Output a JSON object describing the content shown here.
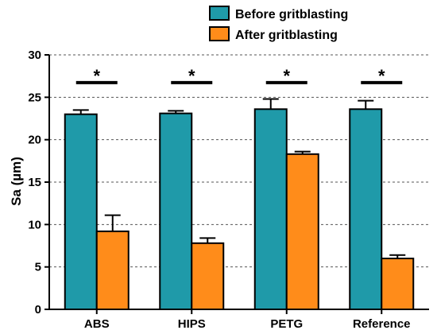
{
  "chart_data": {
    "type": "bar",
    "title": "",
    "xlabel": "",
    "ylabel": "Sa (µm)",
    "ylim": [
      0,
      30
    ],
    "yticks": [
      0,
      5,
      10,
      15,
      20,
      25,
      30
    ],
    "grid": "horizontal-dashed",
    "legend_position": "top-right",
    "categories": [
      "ABS",
      "HIPS",
      "PETG",
      "Reference"
    ],
    "series": [
      {
        "name": "Before gritblasting",
        "color": "#1f9aa9",
        "values": [
          23.0,
          23.1,
          23.6,
          23.6
        ],
        "errors": [
          0.5,
          0.3,
          1.2,
          1.0
        ]
      },
      {
        "name": "After gritblasting",
        "color": "#ff8c1a",
        "values": [
          9.2,
          7.8,
          18.3,
          6.0
        ],
        "errors": [
          1.9,
          0.6,
          0.3,
          0.4
        ]
      }
    ],
    "significance": [
      {
        "category": "ABS",
        "y": 27.2,
        "label": "*"
      },
      {
        "category": "HIPS",
        "y": 27.2,
        "label": "*"
      },
      {
        "category": "PETG",
        "y": 27.2,
        "label": "*"
      },
      {
        "category": "Reference",
        "y": 27.2,
        "label": "*"
      }
    ]
  }
}
